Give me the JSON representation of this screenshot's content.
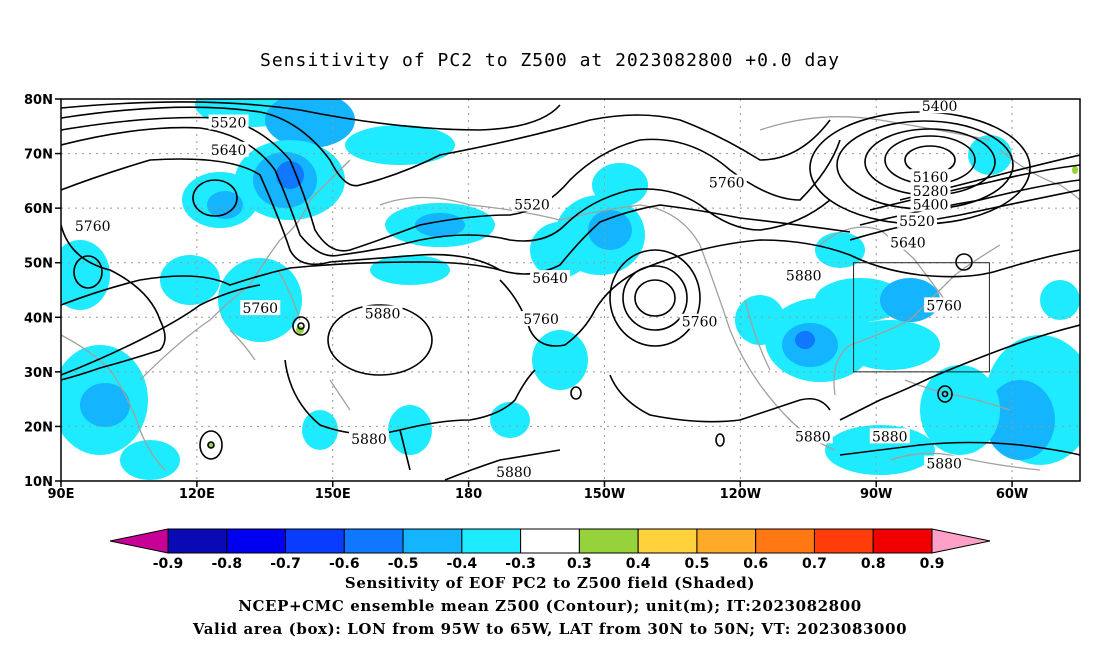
{
  "title": "Sensitivity of PC2 to Z500 at 2023082800 +0.0 day",
  "map": {
    "lat_labels": [
      "80N",
      "70N",
      "60N",
      "50N",
      "40N",
      "30N",
      "20N",
      "10N"
    ],
    "lon_labels": [
      "90E",
      "120E",
      "150E",
      "180",
      "150W",
      "120W",
      "90W",
      "60W"
    ],
    "contour_labels": [
      {
        "text": "5520",
        "lon": 127,
        "lat": 75.5
      },
      {
        "text": "5640",
        "lon": 127,
        "lat": 70.5
      },
      {
        "text": "5760",
        "lon": 97,
        "lat": 56.5
      },
      {
        "text": "5760",
        "lon": 134,
        "lat": 41.5
      },
      {
        "text": "5880",
        "lon": 161,
        "lat": 40.5
      },
      {
        "text": "5520",
        "lon": 194,
        "lat": 60.5
      },
      {
        "text": "5640",
        "lon": 198,
        "lat": 47.0
      },
      {
        "text": "5760",
        "lon": 196,
        "lat": 39.5
      },
      {
        "text": "5760",
        "lon": 231,
        "lat": 39.0
      },
      {
        "text": "5760",
        "lon": 237,
        "lat": 64.5
      },
      {
        "text": "5880",
        "lon": 254,
        "lat": 47.5
      },
      {
        "text": "5400",
        "lon": 284,
        "lat": 78.5
      },
      {
        "text": "5160",
        "lon": 282,
        "lat": 65.5
      },
      {
        "text": "5280",
        "lon": 282,
        "lat": 63.0
      },
      {
        "text": "5400",
        "lon": 282,
        "lat": 60.5
      },
      {
        "text": "5520",
        "lon": 279,
        "lat": 57.5
      },
      {
        "text": "5640",
        "lon": 277,
        "lat": 53.5
      },
      {
        "text": "5760",
        "lon": 285,
        "lat": 42.0
      },
      {
        "text": "5880",
        "lon": 158,
        "lat": 17.5
      },
      {
        "text": "5880",
        "lon": 190,
        "lat": 11.5
      },
      {
        "text": "5880",
        "lon": 256,
        "lat": 18.0
      },
      {
        "text": "5880",
        "lon": 273,
        "lat": 18.0
      },
      {
        "text": "5880",
        "lon": 285,
        "lat": 13.0
      }
    ],
    "valid_box": {
      "lon_min": 265,
      "lon_max": 295,
      "lat_min": 30,
      "lat_max": 50
    }
  },
  "colorbar": {
    "labels": [
      "-0.9",
      "-0.8",
      "-0.7",
      "-0.6",
      "-0.5",
      "-0.4",
      "-0.3",
      "0.3",
      "0.4",
      "0.5",
      "0.6",
      "0.7",
      "0.8",
      "0.9"
    ],
    "colors": [
      "#0a0ab4",
      "#0000f0",
      "#0a3cff",
      "#0f78ff",
      "#14b4ff",
      "#1eebff",
      "#ffffff",
      "#96d23c",
      "#ffd23c",
      "#ffaa28",
      "#ff7814",
      "#ff3c0a",
      "#f00000"
    ],
    "under_color": "#c80096",
    "over_color": "#ffa0c8"
  },
  "caption": {
    "line1": "Sensitivity of EOF PC2 to Z500 field (Shaded)",
    "line2": "NCEP+CMC ensemble mean Z500 (Contour); unit(m); IT:2023082800",
    "line3": "Valid area (box): LON from 95W to 65W, LAT from 30N to 50N; VT: 2023083000"
  }
}
